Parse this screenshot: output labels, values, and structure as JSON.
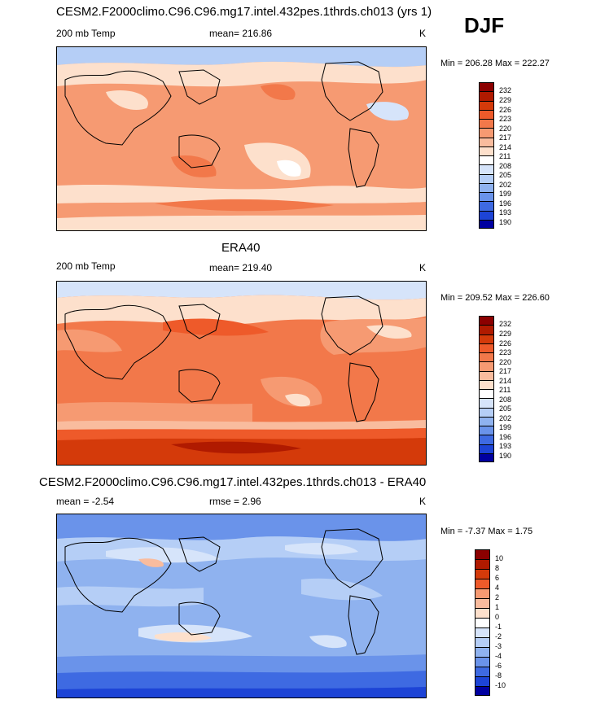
{
  "season": "DJF",
  "panels": [
    {
      "id": "model",
      "title": "CESM2.F2000climo.C96.C96.mg17.intel.432pes.1thrds.ch013 (yrs 1)",
      "left_label": "200 mb Temp",
      "center_label": "mean= 216.86",
      "units": "K",
      "minmax": "Min = 206.28 Max = 222.27",
      "colorbar": {
        "labels": [
          "232",
          "229",
          "226",
          "223",
          "220",
          "217",
          "214",
          "211",
          "208",
          "205",
          "202",
          "199",
          "196",
          "193",
          "190"
        ],
        "colors": [
          "#8b0000",
          "#b01a00",
          "#d43a0a",
          "#ee5a2a",
          "#f2784a",
          "#f69a72",
          "#f9bc9e",
          "#fde0cc",
          "#ffffff",
          "#d6e4fa",
          "#b5cef6",
          "#8fb2ef",
          "#6a93ea",
          "#3e6ae2",
          "#1d44d6",
          "#0000a0"
        ]
      }
    },
    {
      "id": "obs",
      "title": "ERA40",
      "left_label": "200 mb Temp",
      "center_label": "mean= 219.40",
      "units": "K",
      "minmax": "Min = 209.52 Max = 226.60",
      "colorbar": {
        "labels": [
          "232",
          "229",
          "226",
          "223",
          "220",
          "217",
          "214",
          "211",
          "208",
          "205",
          "202",
          "199",
          "196",
          "193",
          "190"
        ],
        "colors": [
          "#8b0000",
          "#b01a00",
          "#d43a0a",
          "#ee5a2a",
          "#f2784a",
          "#f69a72",
          "#f9bc9e",
          "#fde0cc",
          "#ffffff",
          "#d6e4fa",
          "#b5cef6",
          "#8fb2ef",
          "#6a93ea",
          "#3e6ae2",
          "#1d44d6",
          "#0000a0"
        ]
      }
    },
    {
      "id": "diff",
      "title": "CESM2.F2000climo.C96.C96.mg17.intel.432pes.1thrds.ch013 - ERA40",
      "left_label": "mean = -2.54",
      "center_label": "rmse = 2.96",
      "units": "K",
      "minmax": "Min = -7.37 Max = 1.75",
      "colorbar": {
        "labels": [
          "10",
          "8",
          "6",
          "4",
          "2",
          "1",
          "0",
          "-1",
          "-2",
          "-3",
          "-4",
          "-6",
          "-8",
          "-10"
        ],
        "colors": [
          "#8b0000",
          "#b01a00",
          "#d43a0a",
          "#ee5a2a",
          "#f69a72",
          "#f9bc9e",
          "#fde0cc",
          "#ffffff",
          "#d6e4fa",
          "#b5cef6",
          "#8fb2ef",
          "#6a93ea",
          "#3e6ae2",
          "#1d44d6",
          "#0000a0"
        ]
      }
    }
  ]
}
